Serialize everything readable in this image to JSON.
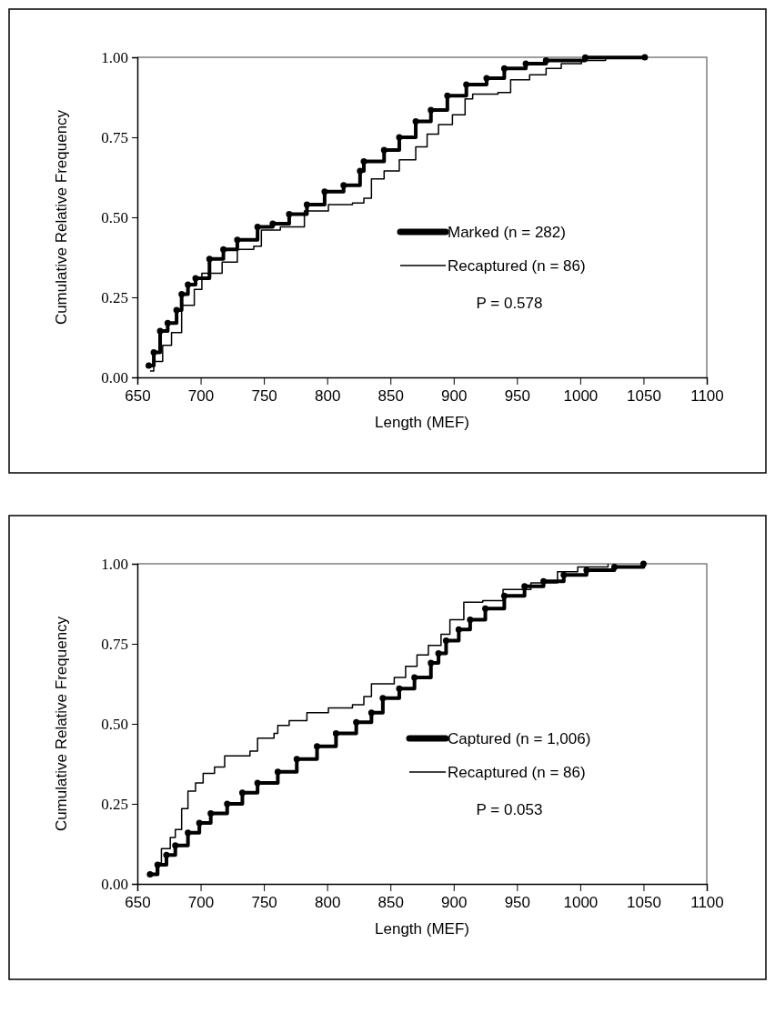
{
  "chart_data": [
    {
      "type": "step",
      "xlabel": "Length (MEF)",
      "ylabel": "Cumulative Relative Frequency",
      "xlim": [
        650,
        1100
      ],
      "xticks": [
        650,
        700,
        750,
        800,
        850,
        900,
        950,
        1000,
        1050,
        1100
      ],
      "ylim": [
        0,
        1
      ],
      "yticks": [
        {
          "value": 0,
          "label": "0.00"
        },
        {
          "value": 0.25,
          "label": "0.25"
        },
        {
          "value": 0.5,
          "label": "0.50"
        },
        {
          "value": 0.75,
          "label": "0.75"
        },
        {
          "value": 1,
          "label": "1.00"
        }
      ],
      "grid": false,
      "legend": "right",
      "annotations": [
        "P = 0.578"
      ],
      "series": [
        {
          "name": "Marked (n = 282)",
          "color": "#000000",
          "marker": "circle",
          "x": [
            659,
            663,
            668,
            674,
            681,
            685,
            690,
            696,
            707,
            718,
            729,
            745,
            757,
            770,
            784,
            798,
            813,
            826,
            829,
            845,
            857,
            870,
            882,
            895,
            910,
            926,
            940,
            957,
            973,
            1004,
            1051
          ],
          "values": [
            0.037,
            0.078,
            0.145,
            0.17,
            0.21,
            0.26,
            0.29,
            0.31,
            0.37,
            0.4,
            0.43,
            0.47,
            0.48,
            0.51,
            0.54,
            0.58,
            0.6,
            0.645,
            0.675,
            0.71,
            0.75,
            0.8,
            0.835,
            0.88,
            0.915,
            0.935,
            0.965,
            0.98,
            0.99,
            0.999,
            1
          ]
        },
        {
          "name": "Recaptured (n = 86)",
          "color": "#000000",
          "marker": "none",
          "x": [
            660,
            663,
            670,
            677,
            685,
            695,
            701,
            717,
            729,
            742,
            748,
            763,
            782,
            801,
            820,
            829,
            835,
            845,
            857,
            870,
            879,
            888,
            899,
            909,
            915,
            935,
            945,
            960,
            973,
            985,
            1001,
            1020
          ],
          "values": [
            0.02,
            0.05,
            0.1,
            0.14,
            0.225,
            0.275,
            0.325,
            0.36,
            0.4,
            0.41,
            0.46,
            0.47,
            0.52,
            0.54,
            0.545,
            0.56,
            0.62,
            0.645,
            0.68,
            0.72,
            0.76,
            0.79,
            0.82,
            0.87,
            0.885,
            0.89,
            0.93,
            0.945,
            0.965,
            0.98,
            0.99,
            0.999
          ]
        }
      ]
    },
    {
      "type": "step",
      "xlabel": "Length (MEF)",
      "ylabel": "Cumulative Relative Frequency",
      "xlim": [
        650,
        1100
      ],
      "xticks": [
        650,
        700,
        750,
        800,
        850,
        900,
        950,
        1000,
        1050,
        1100
      ],
      "ylim": [
        0,
        1
      ],
      "yticks": [
        {
          "value": 0,
          "label": "0.00"
        },
        {
          "value": 0.25,
          "label": "0.25"
        },
        {
          "value": 0.5,
          "label": "0.50"
        },
        {
          "value": 0.75,
          "label": "0.75"
        },
        {
          "value": 1,
          "label": "1.00"
        }
      ],
      "grid": false,
      "legend": "right",
      "annotations": [
        "P = 0.053"
      ],
      "series": [
        {
          "name": "Captured (n = 1,006)",
          "color": "#000000",
          "marker": "circle",
          "x": [
            660,
            666,
            673,
            680,
            690,
            699,
            708,
            721,
            733,
            745,
            761,
            776,
            792,
            807,
            823,
            835,
            844,
            857,
            869,
            882,
            888,
            894,
            904,
            913,
            925,
            940,
            956,
            971,
            987,
            1005,
            1027,
            1050
          ],
          "values": [
            0.03,
            0.06,
            0.09,
            0.12,
            0.16,
            0.19,
            0.22,
            0.25,
            0.285,
            0.315,
            0.35,
            0.39,
            0.43,
            0.47,
            0.505,
            0.535,
            0.58,
            0.61,
            0.645,
            0.69,
            0.72,
            0.76,
            0.795,
            0.825,
            0.86,
            0.9,
            0.93,
            0.945,
            0.965,
            0.98,
            0.99,
            1
          ]
        },
        {
          "name": "Recaptured (n = 86)",
          "color": "#000000",
          "marker": "none",
          "x": [
            659,
            665,
            669,
            676,
            680,
            685,
            690,
            696,
            702,
            711,
            719,
            739,
            745,
            758,
            761,
            770,
            784,
            801,
            820,
            829,
            835,
            853,
            862,
            871,
            880,
            890,
            897,
            908,
            923,
            939,
            961,
            982,
            998,
            1022
          ],
          "values": [
            0.03,
            0.065,
            0.11,
            0.145,
            0.17,
            0.235,
            0.29,
            0.315,
            0.345,
            0.365,
            0.4,
            0.415,
            0.455,
            0.47,
            0.495,
            0.51,
            0.535,
            0.55,
            0.56,
            0.585,
            0.625,
            0.645,
            0.68,
            0.715,
            0.745,
            0.78,
            0.825,
            0.88,
            0.885,
            0.92,
            0.94,
            0.975,
            0.99,
            0.999
          ]
        }
      ]
    }
  ]
}
